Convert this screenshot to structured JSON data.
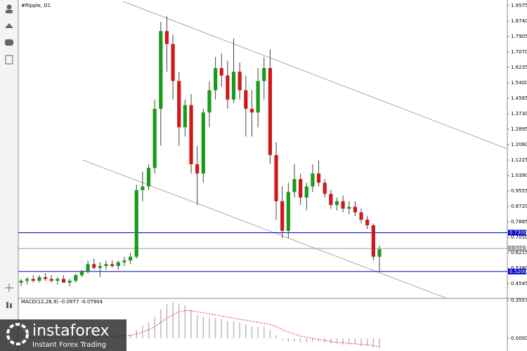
{
  "chart_data": {
    "type": "candlestick",
    "title": "#Ripple, D1",
    "up_color": "#1a9a1a",
    "down_color": "#d01818",
    "open": [
      0.46,
      0.47,
      0.48,
      0.47,
      0.49,
      0.48,
      0.47,
      0.48,
      0.46,
      0.47,
      0.5,
      0.52,
      0.56,
      0.54,
      0.55,
      0.56,
      0.55,
      0.57,
      0.58,
      0.6,
      0.96,
      0.98,
      1.08,
      1.4,
      1.82,
      1.75,
      1.55,
      1.3,
      1.42,
      1.1,
      1.05,
      1.38,
      1.5,
      1.62,
      1.58,
      1.45,
      1.6,
      1.5,
      1.4,
      1.38,
      1.55,
      1.62,
      1.15,
      0.9,
      0.74,
      0.95,
      1.02,
      0.92,
      0.98,
      1.05,
      1.0,
      0.94,
      0.88,
      0.9,
      0.86,
      0.87,
      0.84,
      0.8,
      0.77,
      0.6
    ],
    "high": [
      0.48,
      0.49,
      0.5,
      0.5,
      0.51,
      0.5,
      0.49,
      0.5,
      0.48,
      0.51,
      0.53,
      0.58,
      0.59,
      0.57,
      0.58,
      0.58,
      0.58,
      0.6,
      0.62,
      0.99,
      1.06,
      1.1,
      1.45,
      1.87,
      1.9,
      1.8,
      1.6,
      1.45,
      1.48,
      1.2,
      1.4,
      1.55,
      1.68,
      1.7,
      1.66,
      1.78,
      1.65,
      1.58,
      1.5,
      1.62,
      1.68,
      1.72,
      1.22,
      0.98,
      1.0,
      1.1,
      1.05,
      1.0,
      1.1,
      1.12,
      1.02,
      0.96,
      0.92,
      0.93,
      0.9,
      0.9,
      0.86,
      0.82,
      0.78,
      0.66
    ],
    "low": [
      0.44,
      0.45,
      0.46,
      0.46,
      0.47,
      0.46,
      0.45,
      0.46,
      0.44,
      0.46,
      0.49,
      0.51,
      0.53,
      0.49,
      0.53,
      0.54,
      0.53,
      0.55,
      0.56,
      0.59,
      0.9,
      0.96,
      1.05,
      1.2,
      1.6,
      1.45,
      1.2,
      1.25,
      1.05,
      0.88,
      1.0,
      1.3,
      1.45,
      1.52,
      1.4,
      1.43,
      1.45,
      1.25,
      1.25,
      1.3,
      1.45,
      1.1,
      0.8,
      0.7,
      0.7,
      0.92,
      0.88,
      0.85,
      0.95,
      0.98,
      0.92,
      0.86,
      0.85,
      0.84,
      0.83,
      0.82,
      0.78,
      0.75,
      0.58,
      0.52
    ],
    "close": [
      0.47,
      0.48,
      0.47,
      0.49,
      0.48,
      0.47,
      0.48,
      0.46,
      0.47,
      0.5,
      0.52,
      0.56,
      0.54,
      0.55,
      0.56,
      0.55,
      0.57,
      0.58,
      0.6,
      0.96,
      0.98,
      1.08,
      1.4,
      1.82,
      1.75,
      1.55,
      1.3,
      1.42,
      1.1,
      1.05,
      1.38,
      1.5,
      1.62,
      1.58,
      1.45,
      1.6,
      1.5,
      1.4,
      1.38,
      1.55,
      1.62,
      1.15,
      0.9,
      0.74,
      0.95,
      1.02,
      0.92,
      0.98,
      1.05,
      1.0,
      0.94,
      0.88,
      0.9,
      0.86,
      0.87,
      0.84,
      0.8,
      0.77,
      0.6,
      0.64
    ],
    "ylim": [
      0.375,
      1.988
    ],
    "yticks": [
      1.9575,
      {
        "value": 1.874,
        "label": "1.8740"
      },
      1.7905,
      {
        "value": 1.707,
        "label": "1.7070"
      },
      1.6235,
      {
        "value": 1.54,
        "label": "1.5400"
      },
      1.4565,
      {
        "value": 1.373,
        "label": "1.3730"
      },
      1.2895,
      {
        "value": 1.206,
        "label": "1.2060"
      },
      1.1225,
      {
        "value": 1.039,
        "label": "1.0390"
      },
      0.9555,
      {
        "value": 0.872,
        "label": "0.8720"
      },
      0.7885,
      {
        "value": 0.705,
        "label": "0.7050"
      },
      0.6215,
      {
        "value": 0.538,
        "label": "0.5380"
      },
      0.4545
    ],
    "levels": [
      {
        "value": 0.73,
        "label": "0.7300",
        "color": "#0000c8"
      },
      {
        "value": 0.6447,
        "label": "0.6447",
        "color": "#999999"
      },
      {
        "value": 0.52,
        "label": "0.5200",
        "color": "#0000c8"
      }
    ],
    "macd": {
      "label": "MACD(12,26,9) -0.0977 -0.07904",
      "hist_color": "#bbbbbb",
      "signal_color": "#e03030",
      "ylim": [
        -0.119,
        0.369
      ],
      "yticks": [
        0.35574,
        {
          "value": 0,
          "label": "0.00000"
        }
      ],
      "histogram": [
        0.005,
        0.006,
        0.004,
        0.005,
        0.006,
        0.005,
        0.004,
        0.005,
        0.006,
        0.008,
        0.01,
        0.015,
        0.02,
        0.02,
        0.022,
        0.022,
        0.025,
        0.03,
        0.035,
        0.08,
        0.12,
        0.15,
        0.2,
        0.27,
        0.32,
        0.34,
        0.33,
        0.31,
        0.27,
        0.22,
        0.2,
        0.19,
        0.19,
        0.18,
        0.16,
        0.16,
        0.15,
        0.13,
        0.11,
        0.11,
        0.11,
        0.08,
        0.03,
        -0.02,
        -0.03,
        -0.03,
        -0.04,
        -0.04,
        -0.03,
        -0.03,
        -0.04,
        -0.05,
        -0.05,
        -0.06,
        -0.06,
        -0.06,
        -0.07,
        -0.07,
        -0.09,
        -0.098
      ],
      "signal": [
        0.01,
        0.01,
        0.01,
        0.01,
        0.01,
        0.01,
        0.01,
        0.01,
        0.01,
        0.01,
        0.01,
        0.012,
        0.014,
        0.016,
        0.018,
        0.02,
        0.022,
        0.025,
        0.028,
        0.04,
        0.06,
        0.08,
        0.11,
        0.15,
        0.19,
        0.22,
        0.25,
        0.26,
        0.26,
        0.25,
        0.24,
        0.23,
        0.22,
        0.21,
        0.2,
        0.19,
        0.18,
        0.17,
        0.16,
        0.15,
        0.14,
        0.13,
        0.11,
        0.08,
        0.06,
        0.04,
        0.02,
        0.01,
        0,
        -0.01,
        -0.02,
        -0.03,
        -0.04,
        -0.04,
        -0.05,
        -0.05,
        -0.06,
        -0.06,
        -0.07,
        -0.079
      ]
    }
  },
  "watermark": {
    "brand": "instaforex",
    "tagline": "Instant Forex Trading"
  }
}
